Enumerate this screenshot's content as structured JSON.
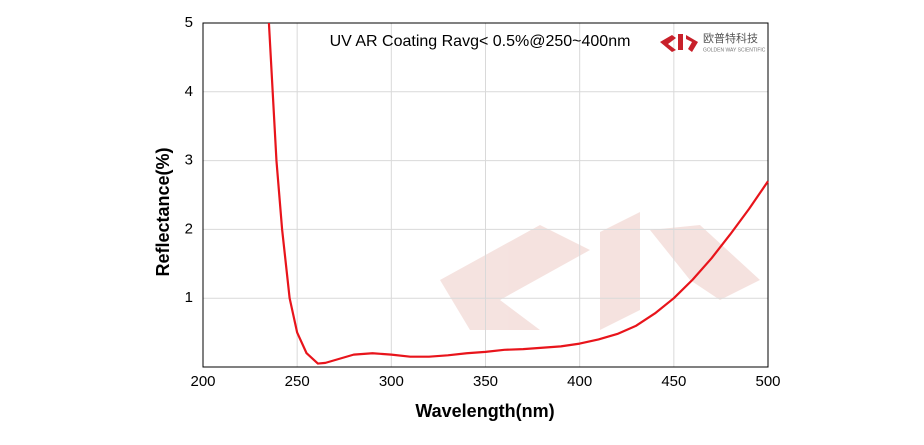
{
  "chart_data": {
    "type": "line",
    "title": "UV AR Coating Ravg< 0.5%@250~400nm",
    "logo_text": "欧普特科技",
    "logo_subtext": "GOLDEN WAY SCIENTIFIC",
    "x_label": "Wavelength(nm)",
    "y_label": "Reflectance(%)",
    "xlim": [
      200,
      500
    ],
    "xticks": [
      200,
      250,
      300,
      350,
      400,
      450,
      500
    ],
    "ylim": [
      0,
      5
    ],
    "yticks": [
      1,
      2,
      3,
      4,
      5
    ],
    "grid": true,
    "series": [
      {
        "name": "UV AR Coating",
        "color": "#e8141b",
        "x": [
          235,
          237,
          239,
          242,
          246,
          250,
          255,
          261,
          265,
          270,
          280,
          290,
          300,
          310,
          320,
          330,
          340,
          350,
          360,
          370,
          380,
          390,
          400,
          410,
          420,
          430,
          440,
          450,
          460,
          470,
          480,
          490,
          500
        ],
        "values": [
          5,
          4,
          3,
          2,
          1,
          0.5,
          0.2,
          0.05,
          0.06,
          0.1,
          0.18,
          0.2,
          0.18,
          0.15,
          0.15,
          0.17,
          0.2,
          0.22,
          0.25,
          0.26,
          0.28,
          0.3,
          0.34,
          0.4,
          0.48,
          0.6,
          0.78,
          1.0,
          1.27,
          1.58,
          1.93,
          2.3,
          2.7
        ]
      }
    ]
  }
}
